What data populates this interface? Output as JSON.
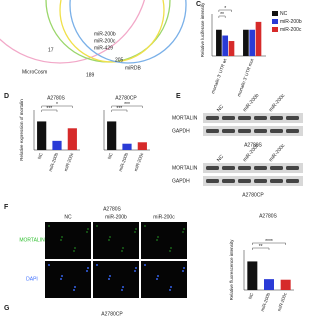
{
  "venn": {
    "labels": [
      "17",
      "miR-200b",
      "miR-200c",
      "miR-429",
      "MicroCosm",
      "205",
      "miRDB",
      "189"
    ]
  },
  "panel_c": {
    "letter": "C",
    "ylabel": "Relative luciferase intensity",
    "ylim": [
      0,
      1.6
    ],
    "categories": [
      "mortalin 3' UTR wt",
      "mortalin 3' UTR mut"
    ],
    "series": [
      {
        "name": "NC",
        "color": "#111111",
        "values": [
          1.0,
          1.0
        ]
      },
      {
        "name": "miR-200b",
        "color": "#2a3bd6",
        "values": [
          0.78,
          1.0
        ]
      },
      {
        "name": "miR-200c",
        "color": "#d62a2a",
        "values": [
          0.57,
          1.3
        ]
      }
    ],
    "annotations": [
      "**",
      "*"
    ]
  },
  "panel_d": {
    "letter": "D",
    "ylabel": "Relative expression of mortalin",
    "charts": [
      {
        "title": "A2780S",
        "ylim": [
          0,
          1.4
        ],
        "categories": [
          "NC",
          "miR-200b",
          "miR-200c"
        ],
        "values": [
          1.0,
          0.32,
          0.76
        ],
        "colors": [
          "#111111",
          "#2a3bd6",
          "#d62a2a"
        ],
        "annotations": [
          "*",
          "***"
        ]
      },
      {
        "title": "A2780CP",
        "ylim": [
          0,
          1.4
        ],
        "categories": [
          "NC",
          "miR-200b",
          "miR-200c"
        ],
        "values": [
          1.0,
          0.22,
          0.27
        ],
        "colors": [
          "#111111",
          "#2a3bd6",
          "#d62a2a"
        ],
        "annotations": [
          "***",
          "***"
        ]
      }
    ]
  },
  "panel_e": {
    "letter": "E",
    "columns": [
      "NC",
      "miR-200b",
      "miR-200c"
    ],
    "rows": [
      "MORTALIN",
      "GAPDH"
    ],
    "blots": [
      "A2780S",
      "A2780CP"
    ]
  },
  "panel_f": {
    "letter": "F",
    "title": "A2780S",
    "columns": [
      "NC",
      "miR-200b",
      "miR-200c"
    ],
    "rows": [
      "MORTALIN",
      "DAPI"
    ],
    "chart": {
      "title": "A2780S",
      "ylabel": "Relative fluorescence intensity",
      "ylim": [
        0,
        1.4
      ],
      "categories": [
        "NC",
        "miR-200b",
        "miR-200c"
      ],
      "values": [
        1.0,
        0.38,
        0.36
      ],
      "colors": [
        "#111111",
        "#2a3bd6",
        "#d62a2a"
      ],
      "annotations": [
        "**",
        "****"
      ]
    }
  },
  "panel_g": {
    "letter": "G",
    "title": "A2780CP"
  }
}
